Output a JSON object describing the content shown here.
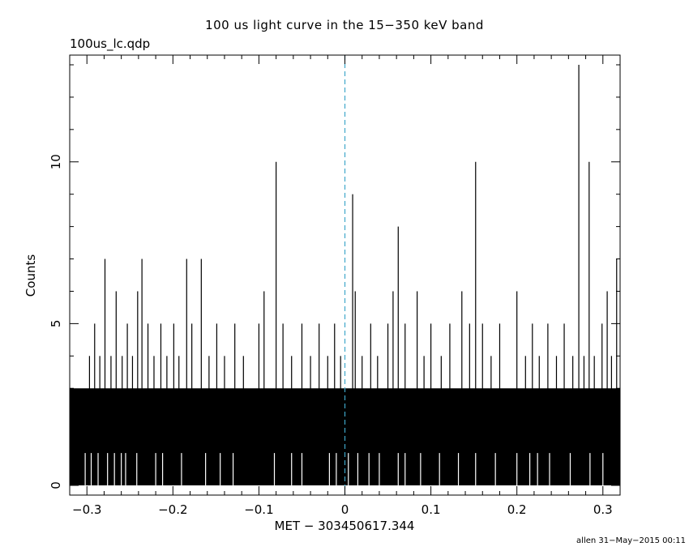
{
  "chart_data": {
    "type": "histogram-step",
    "title": "100 us light curve in the 15−350 keV band",
    "file_label": "100us_lc.qdp",
    "xlabel": "MET − 303450617.344",
    "ylabel": "Counts",
    "footer": "allen 31−May−2015 00:11",
    "xlim": [
      -0.32,
      0.32
    ],
    "ylim": [
      -0.3,
      13.3
    ],
    "bin_width": 0.0001,
    "x_ticks": [
      -0.3,
      -0.2,
      -0.1,
      0,
      0.1,
      0.2,
      0.3
    ],
    "x_tick_labels": [
      "−0.3",
      "−0.2",
      "−0.1",
      "0",
      "0.1",
      "0.2",
      "0.3"
    ],
    "y_ticks": [
      0,
      5,
      10
    ],
    "y_tick_labels": [
      "0",
      "5",
      "10"
    ],
    "trigger_line": {
      "x": 0,
      "style": "dashed",
      "color": "#3fa7c9"
    },
    "series": [
      {
        "peaks": [
          [
            -0.297,
            4
          ],
          [
            -0.291,
            5
          ],
          [
            -0.285,
            4
          ],
          [
            -0.279,
            7
          ],
          [
            -0.272,
            4
          ],
          [
            -0.266,
            6
          ],
          [
            -0.259,
            4
          ],
          [
            -0.253,
            5
          ],
          [
            -0.247,
            4
          ],
          [
            -0.241,
            6
          ],
          [
            -0.236,
            7
          ],
          [
            -0.229,
            5
          ],
          [
            -0.222,
            4
          ],
          [
            -0.214,
            5
          ],
          [
            -0.207,
            4
          ],
          [
            -0.199,
            5
          ],
          [
            -0.193,
            4
          ],
          [
            -0.184,
            7
          ],
          [
            -0.178,
            5
          ],
          [
            -0.167,
            7
          ],
          [
            -0.158,
            4
          ],
          [
            -0.149,
            5
          ],
          [
            -0.14,
            4
          ],
          [
            -0.128,
            5
          ],
          [
            -0.118,
            4
          ],
          [
            -0.1,
            5
          ],
          [
            -0.094,
            6
          ],
          [
            -0.08,
            10
          ],
          [
            -0.072,
            5
          ],
          [
            -0.062,
            4
          ],
          [
            -0.05,
            5
          ],
          [
            -0.04,
            4
          ],
          [
            -0.03,
            5
          ],
          [
            -0.02,
            4
          ],
          [
            -0.012,
            5
          ],
          [
            -0.005,
            4
          ],
          [
            0.009,
            9
          ],
          [
            0.012,
            6
          ],
          [
            0.02,
            4
          ],
          [
            0.03,
            5
          ],
          [
            0.038,
            4
          ],
          [
            0.05,
            5
          ],
          [
            0.056,
            6
          ],
          [
            0.062,
            8
          ],
          [
            0.07,
            5
          ],
          [
            0.084,
            6
          ],
          [
            0.092,
            4
          ],
          [
            0.1,
            5
          ],
          [
            0.112,
            4
          ],
          [
            0.122,
            5
          ],
          [
            0.136,
            6
          ],
          [
            0.145,
            5
          ],
          [
            0.152,
            10
          ],
          [
            0.16,
            5
          ],
          [
            0.17,
            4
          ],
          [
            0.18,
            5
          ],
          [
            0.2,
            6
          ],
          [
            0.21,
            4
          ],
          [
            0.218,
            5
          ],
          [
            0.226,
            4
          ],
          [
            0.236,
            5
          ],
          [
            0.246,
            4
          ],
          [
            0.255,
            5
          ],
          [
            0.265,
            4
          ],
          [
            0.272,
            13
          ],
          [
            0.278,
            4
          ],
          [
            0.284,
            10
          ],
          [
            0.29,
            4
          ],
          [
            0.299,
            5
          ],
          [
            0.305,
            6
          ],
          [
            0.31,
            4
          ],
          [
            0.316,
            7
          ]
        ],
        "zeros": [
          -0.302,
          -0.295,
          -0.287,
          -0.276,
          -0.268,
          -0.26,
          -0.255,
          -0.242,
          -0.22,
          -0.212,
          -0.19,
          -0.162,
          -0.145,
          -0.13,
          -0.082,
          -0.062,
          -0.05,
          -0.018,
          -0.01,
          0.004,
          0.015,
          0.028,
          0.04,
          0.062,
          0.07,
          0.088,
          0.11,
          0.132,
          0.152,
          0.175,
          0.2,
          0.215,
          0.224,
          0.238,
          0.262,
          0.285,
          0.3
        ]
      }
    ]
  }
}
